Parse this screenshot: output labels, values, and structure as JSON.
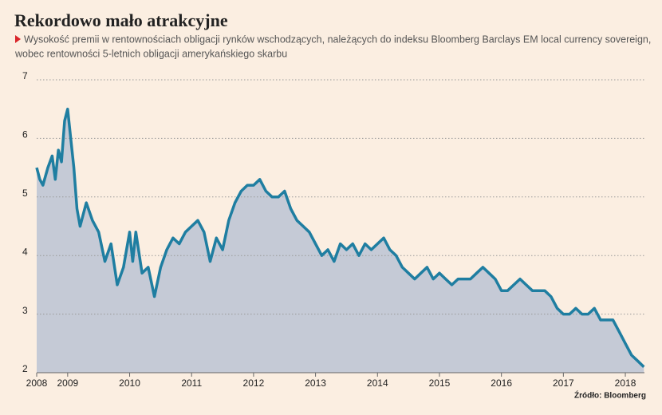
{
  "chart_data": {
    "type": "area",
    "title": "Rekordowo mało atrakcyjne",
    "subtitle_lines": [
      "Wysokość premii w rentownościach obligacji rynków wschodzących, należących do indeksu Bloomberg Barclays EM local currency sovereign,",
      "wobec rentowności 5-letnich obligacji amerykańskiego skarbu"
    ],
    "source": "Źródło: Bloomberg",
    "line_color": "#1f7ea1",
    "fill_color": "#c5cad6",
    "grid": true,
    "x": [
      2008.5,
      2008.55,
      2008.6,
      2008.68,
      2008.75,
      2008.8,
      2008.85,
      2008.9,
      2008.95,
      2009.0,
      2009.05,
      2009.1,
      2009.15,
      2009.2,
      2009.3,
      2009.4,
      2009.5,
      2009.6,
      2009.7,
      2009.8,
      2009.9,
      2010.0,
      2010.05,
      2010.1,
      2010.2,
      2010.3,
      2010.4,
      2010.5,
      2010.6,
      2010.7,
      2010.8,
      2010.9,
      2011.0,
      2011.1,
      2011.2,
      2011.3,
      2011.4,
      2011.5,
      2011.6,
      2011.7,
      2011.8,
      2011.9,
      2012.0,
      2012.1,
      2012.2,
      2012.3,
      2012.4,
      2012.5,
      2012.6,
      2012.7,
      2012.8,
      2012.9,
      2013.0,
      2013.1,
      2013.2,
      2013.3,
      2013.4,
      2013.5,
      2013.6,
      2013.7,
      2013.8,
      2013.9,
      2014.0,
      2014.1,
      2014.2,
      2014.3,
      2014.4,
      2014.5,
      2014.6,
      2014.7,
      2014.8,
      2014.9,
      2015.0,
      2015.1,
      2015.2,
      2015.3,
      2015.4,
      2015.5,
      2015.6,
      2015.7,
      2015.8,
      2015.9,
      2016.0,
      2016.1,
      2016.2,
      2016.3,
      2016.4,
      2016.5,
      2016.6,
      2016.7,
      2016.8,
      2016.9,
      2017.0,
      2017.1,
      2017.2,
      2017.3,
      2017.4,
      2017.5,
      2017.6,
      2017.7,
      2017.8,
      2017.9,
      2018.0,
      2018.1,
      2018.2,
      2018.3
    ],
    "values": [
      5.5,
      5.3,
      5.2,
      5.5,
      5.7,
      5.3,
      5.8,
      5.6,
      6.3,
      6.5,
      6.0,
      5.5,
      4.8,
      4.5,
      4.9,
      4.6,
      4.4,
      3.9,
      4.2,
      3.5,
      3.8,
      4.4,
      3.9,
      4.4,
      3.7,
      3.8,
      3.3,
      3.8,
      4.1,
      4.3,
      4.2,
      4.4,
      4.5,
      4.6,
      4.4,
      3.9,
      4.3,
      4.1,
      4.6,
      4.9,
      5.1,
      5.2,
      5.2,
      5.3,
      5.1,
      5.0,
      5.0,
      5.1,
      4.8,
      4.6,
      4.5,
      4.4,
      4.2,
      4.0,
      4.1,
      3.9,
      4.2,
      4.1,
      4.2,
      4.0,
      4.2,
      4.1,
      4.2,
      4.3,
      4.1,
      4.0,
      3.8,
      3.7,
      3.6,
      3.7,
      3.8,
      3.6,
      3.7,
      3.6,
      3.5,
      3.6,
      3.6,
      3.6,
      3.7,
      3.8,
      3.7,
      3.6,
      3.4,
      3.4,
      3.5,
      3.6,
      3.5,
      3.4,
      3.4,
      3.4,
      3.3,
      3.1,
      3.0,
      3.0,
      3.1,
      3.0,
      3.0,
      3.1,
      2.9,
      2.9,
      2.9,
      2.7,
      2.5,
      2.3,
      2.2,
      2.1
    ],
    "xlim": [
      2008.5,
      2018.36
    ],
    "xticks": [
      {
        "value": 2008.5,
        "label": "2008"
      },
      2009,
      2010,
      2011,
      2012,
      2013,
      2014,
      2015,
      2016,
      2017,
      2018
    ],
    "ylim": [
      2,
      7
    ],
    "yticks": [
      2,
      3,
      4,
      5,
      6,
      7
    ]
  }
}
